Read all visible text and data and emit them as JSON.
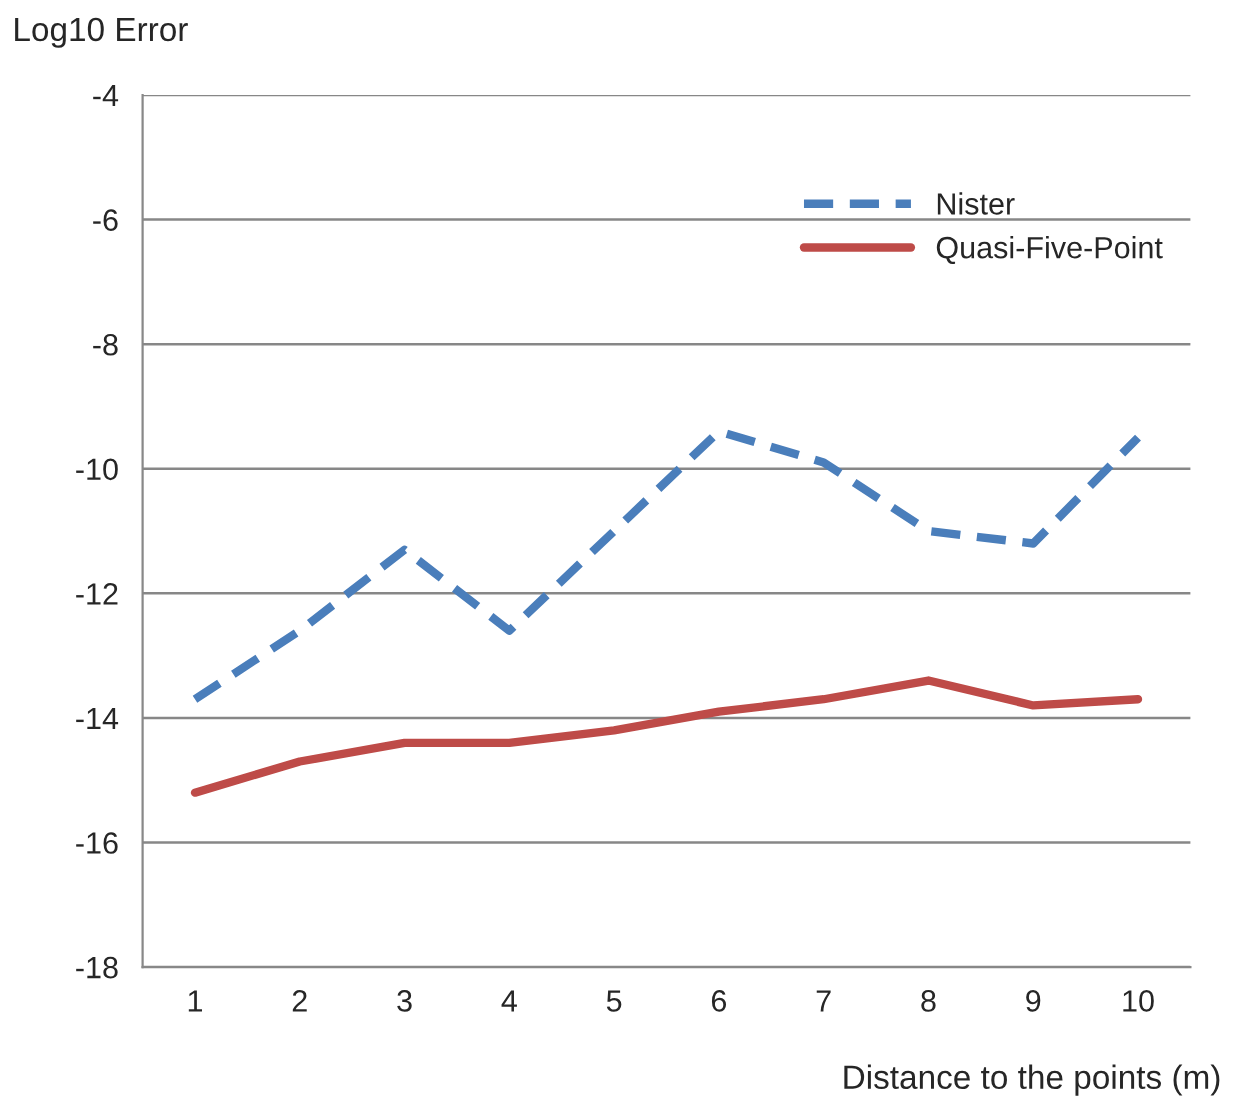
{
  "chart_data": {
    "type": "line",
    "ylabel": "Log10 Error",
    "xlabel": "Distance to the points (m)",
    "categories": [
      "1",
      "2",
      "3",
      "4",
      "5",
      "6",
      "7",
      "8",
      "9",
      "10"
    ],
    "series": [
      {
        "name": "Nister",
        "color": "#4a7ebb",
        "line_style": "dashed",
        "values": [
          -13.7,
          -12.6,
          -11.3,
          -12.6,
          -11.0,
          -9.4,
          -9.9,
          -11.0,
          -11.2,
          -9.5
        ]
      },
      {
        "name": "Quasi-Five-Point",
        "color": "#be4b48",
        "line_style": "solid",
        "values": [
          -15.2,
          -14.7,
          -14.4,
          -14.4,
          -14.2,
          -13.9,
          -13.7,
          -13.4,
          -13.8,
          -13.7
        ]
      }
    ],
    "ylim": [
      -18,
      -4
    ],
    "yticks": [
      -18,
      -16,
      -14,
      -12,
      -10,
      -8,
      -6,
      -4
    ],
    "grid": "y",
    "legend": "top right",
    "marker": "none"
  }
}
